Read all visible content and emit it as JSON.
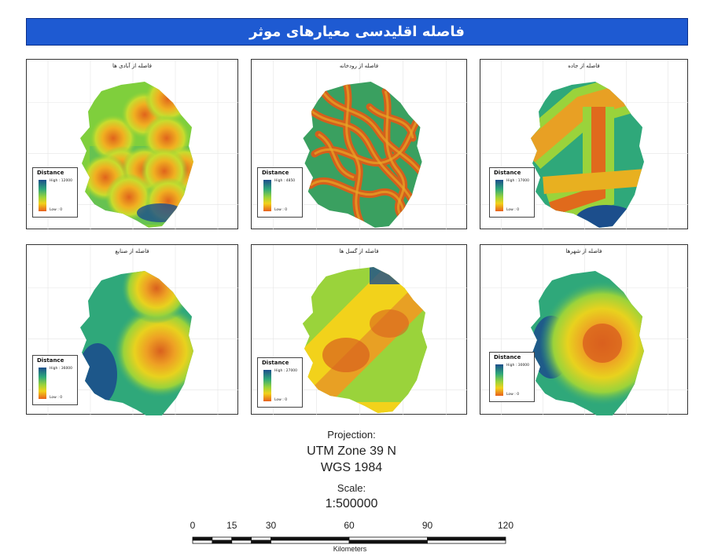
{
  "title": "فاصله اقلیدسی معیارهای موثر",
  "colors": {
    "banner": "#1e5ad2",
    "ramp_high": "#1c4e8c",
    "ramp_mid_high": "#2fa87a",
    "ramp_mid": "#9ad33b",
    "ramp_mid_low": "#f2d21b",
    "ramp_low": "#e8601c"
  },
  "panels": [
    {
      "title": "فاصله از آبادی ها",
      "legend_title": "Distance",
      "high": "High : 12000",
      "low": "Low : 0",
      "pattern": "villages"
    },
    {
      "title": "فاصله از رودخانه",
      "legend_title": "Distance",
      "high": "High : 4850",
      "low": "Low : 0",
      "pattern": "rivers"
    },
    {
      "title": "فاصله از جاده",
      "legend_title": "Distance",
      "high": "High : 17000",
      "low": "Low : 0",
      "pattern": "roads"
    },
    {
      "title": "فاصله از صنایع",
      "legend_title": "Distance",
      "high": "High : 36000",
      "low": "Low : 0",
      "pattern": "industry"
    },
    {
      "title": "فاصله از گسل ها",
      "legend_title": "Distance",
      "high": "High : 27000",
      "low": "Low : 0",
      "pattern": "faults"
    },
    {
      "title": "فاصله از شهرها",
      "legend_title": "Distance",
      "high": "High : 30000",
      "low": "Low : 0",
      "pattern": "cities"
    }
  ],
  "projection": {
    "label": "Projection:",
    "zone": "UTM Zone 39 N",
    "datum": "WGS 1984",
    "scale_label": "Scale:",
    "scale_value": "1:500000"
  },
  "scalebar": {
    "ticks": [
      "0",
      "15",
      "30",
      "60",
      "90",
      "120"
    ],
    "tick_values": [
      0,
      15,
      30,
      60,
      90,
      120
    ],
    "unit": "Kilometers"
  }
}
